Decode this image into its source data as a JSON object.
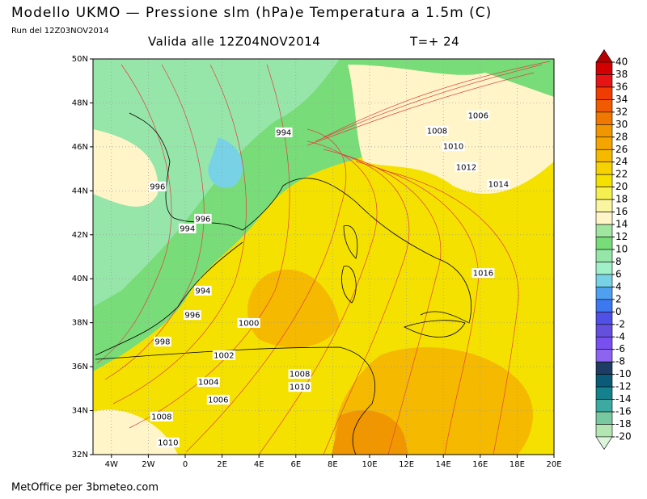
{
  "header": {
    "title": "Modello UKMO — Pressione slm (hPa)e Temperatura a 1.5m (C)",
    "run": "Run del 12Z03NOV2014",
    "valid": "Valida alle 12Z04NOV2014",
    "step": "T=+ 24"
  },
  "map": {
    "xlim": [
      -5,
      20
    ],
    "ylim": [
      32,
      50
    ],
    "xticks": [
      {
        "value": -4,
        "label": "4W"
      },
      {
        "value": -2,
        "label": "2W"
      },
      0,
      {
        "value": 2,
        "label": "2E"
      },
      {
        "value": 4,
        "label": "4E"
      },
      {
        "value": 6,
        "label": "6E"
      },
      {
        "value": 8,
        "label": "8E"
      },
      {
        "value": 10,
        "label": "10E"
      },
      {
        "value": 12,
        "label": "12E"
      },
      {
        "value": 14,
        "label": "14E"
      },
      {
        "value": 16,
        "label": "16E"
      },
      {
        "value": 18,
        "label": "18E"
      },
      {
        "value": 20,
        "label": "20E"
      }
    ],
    "yticks": [
      {
        "value": 32,
        "label": "32N"
      },
      {
        "value": 34,
        "label": "34N"
      },
      {
        "value": 36,
        "label": "36N"
      },
      {
        "value": 38,
        "label": "38N"
      },
      {
        "value": 40,
        "label": "40N"
      },
      {
        "value": 42,
        "label": "42N"
      },
      {
        "value": 44,
        "label": "44N"
      },
      {
        "value": 46,
        "label": "46N"
      },
      {
        "value": 48,
        "label": "48N"
      },
      {
        "value": 50,
        "label": "50N"
      }
    ],
    "isobar_labels": [
      {
        "value": 994,
        "lon": 5.34,
        "lat": 46.66
      },
      {
        "value": 996,
        "lon": -1.5,
        "lat": 44.2
      },
      {
        "value": 996,
        "lon": 0.96,
        "lat": 42.73
      },
      {
        "value": 994,
        "lon": 0.12,
        "lat": 42.29
      },
      {
        "value": 994,
        "lon": 0.96,
        "lat": 39.46
      },
      {
        "value": 996,
        "lon": 0.39,
        "lat": 38.35
      },
      {
        "value": 998,
        "lon": -1.23,
        "lat": 37.14
      },
      {
        "value": 1000,
        "lon": 3.45,
        "lat": 37.99
      },
      {
        "value": 1002,
        "lon": 2.1,
        "lat": 36.52
      },
      {
        "value": 1004,
        "lon": 1.26,
        "lat": 35.3
      },
      {
        "value": 1006,
        "lon": 1.79,
        "lat": 34.5
      },
      {
        "value": 1008,
        "lon": -1.28,
        "lat": 33.73
      },
      {
        "value": 1010,
        "lon": -0.93,
        "lat": 32.55
      },
      {
        "value": 1008,
        "lon": 6.21,
        "lat": 35.67
      },
      {
        "value": 1010,
        "lon": 6.21,
        "lat": 35.08
      },
      {
        "value": 1006,
        "lon": 15.89,
        "lat": 47.43
      },
      {
        "value": 1008,
        "lon": 13.66,
        "lat": 46.73
      },
      {
        "value": 1010,
        "lon": 14.54,
        "lat": 46.03
      },
      {
        "value": 1012,
        "lon": 15.24,
        "lat": 45.08
      },
      {
        "value": 1014,
        "lon": 16.99,
        "lat": 44.31
      },
      {
        "value": 1016,
        "lon": 16.16,
        "lat": 40.26
      }
    ],
    "colorbar": {
      "levels": [
        40,
        38,
        36,
        34,
        32,
        30,
        28,
        26,
        24,
        22,
        20,
        18,
        16,
        14,
        12,
        10,
        8,
        6,
        4,
        2,
        0,
        -2,
        -4,
        -6,
        -8,
        -10,
        -12,
        -14,
        -16,
        -18,
        -20
      ],
      "colors": [
        "#b40000",
        "#d20000",
        "#e61414",
        "#f03c00",
        "#f05a00",
        "#f07800",
        "#f09600",
        "#f5a500",
        "#f5b900",
        "#f5d200",
        "#f5e100",
        "#f5f050",
        "#faf5a0",
        "#fff5c8",
        "#a0e6a0",
        "#78dc78",
        "#96e6aa",
        "#a0f0c8",
        "#78d2e6",
        "#50a0f0",
        "#3c78f0",
        "#5050e6",
        "#6450dc",
        "#7850f0",
        "#8c64f0",
        "#1e3c64",
        "#0a5a78",
        "#14828c",
        "#3caaa0",
        "#78c8a0",
        "#b4e6b4",
        "#dcf5dc"
      ]
    }
  },
  "footer": "MetOffice per 3bmeteo.com"
}
